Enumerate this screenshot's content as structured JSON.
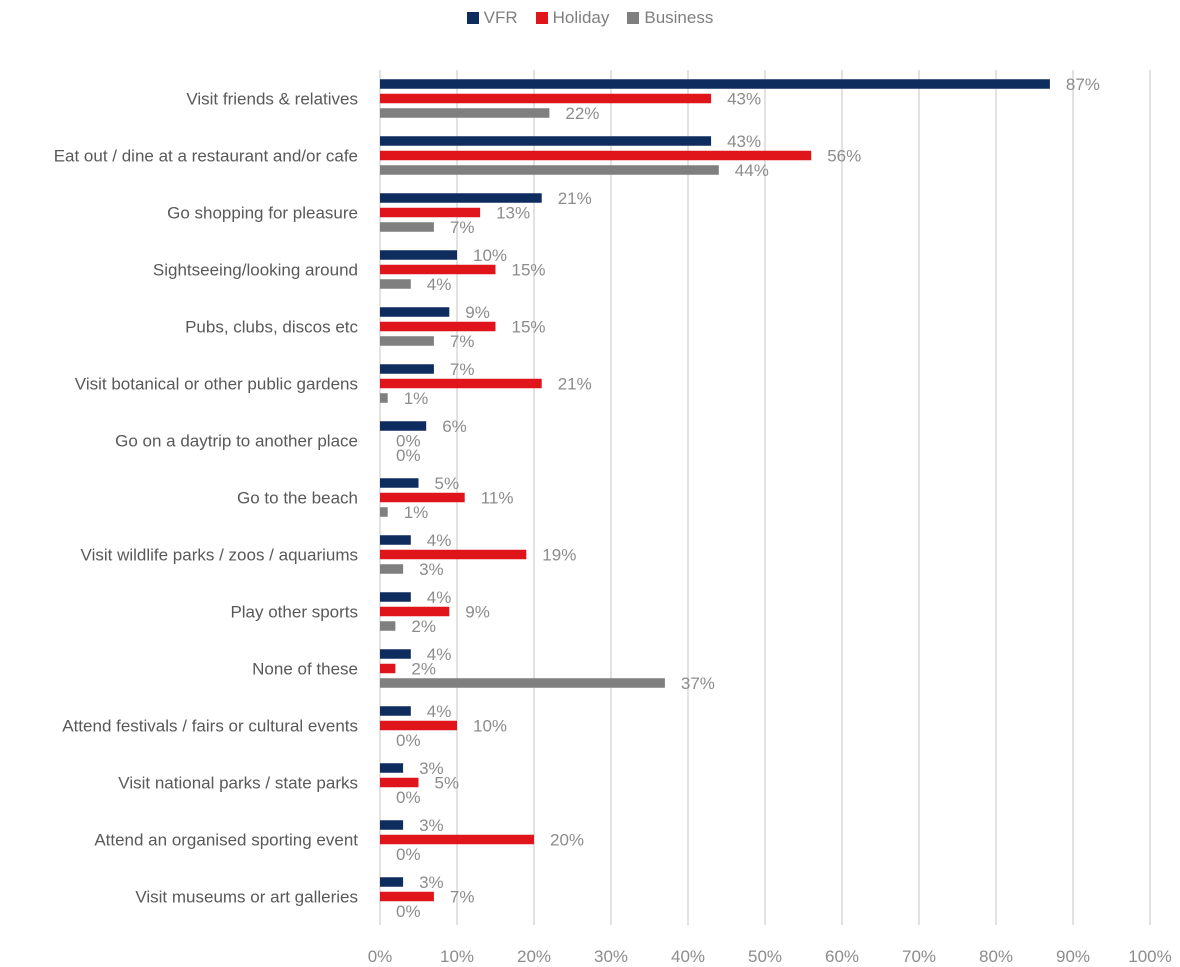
{
  "chart_data": {
    "type": "bar",
    "orientation": "horizontal",
    "categories": [
      "Visit friends & relatives",
      "Eat out / dine at a restaurant and/or cafe",
      "Go shopping for pleasure",
      "Sightseeing/looking around",
      "Pubs, clubs, discos etc",
      "Visit botanical or other public gardens",
      "Go on a daytrip to another place",
      "Go to the beach",
      "Visit wildlife parks / zoos / aquariums",
      "Play other sports",
      "None of these",
      "Attend festivals / fairs or cultural events",
      "Visit national parks / state parks",
      "Attend an organised sporting event",
      "Visit museums or art galleries"
    ],
    "series": [
      {
        "name": "VFR",
        "color": "#0f2c5f",
        "values": [
          87,
          43,
          21,
          10,
          9,
          7,
          6,
          5,
          4,
          4,
          4,
          4,
          3,
          3,
          3
        ]
      },
      {
        "name": "Holiday",
        "color": "#e0151b",
        "values": [
          43,
          56,
          13,
          15,
          15,
          21,
          0,
          11,
          19,
          9,
          2,
          10,
          5,
          20,
          7
        ]
      },
      {
        "name": "Business",
        "color": "#7f7f7f",
        "values": [
          22,
          44,
          7,
          4,
          7,
          1,
          0,
          1,
          3,
          2,
          37,
          0,
          0,
          0,
          0
        ]
      }
    ],
    "xlim": [
      0,
      100
    ],
    "xticks": [
      0,
      10,
      20,
      30,
      40,
      50,
      60,
      70,
      80,
      90,
      100
    ],
    "value_suffix": "%",
    "grid": "vertical",
    "legend_position": "top-center"
  }
}
